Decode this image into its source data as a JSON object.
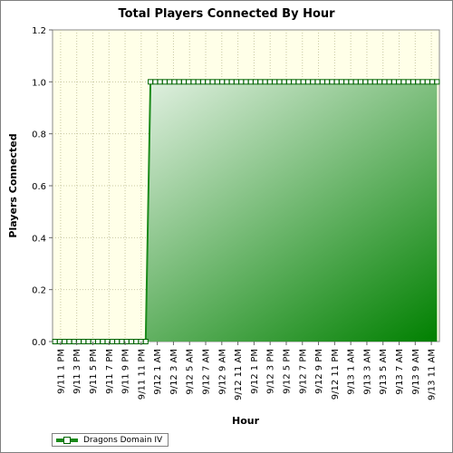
{
  "chart_data": {
    "type": "area",
    "title": "Total Players Connected By Hour",
    "xlabel": "Hour",
    "ylabel": "Players Connected",
    "ylim": [
      0,
      1.2
    ],
    "yticks": [
      "0.0",
      "0.2",
      "0.4",
      "0.6",
      "0.8",
      "1.0",
      "1.2"
    ],
    "xtick_labels": [
      "9/11 1 PM",
      "9/11 3 PM",
      "9/11 5 PM",
      "9/11 7 PM",
      "9/11 9 PM",
      "9/11 11 PM",
      "9/12 1 AM",
      "9/12 3 AM",
      "9/12 5 AM",
      "9/12 7 AM",
      "9/12 9 AM",
      "9/12 11 AM",
      "9/12 1 PM",
      "9/12 3 PM",
      "9/12 5 PM",
      "9/12 7 PM",
      "9/12 9 PM",
      "9/12 11 PM",
      "9/13 1 AM",
      "9/13 3 AM",
      "9/13 5 AM",
      "9/13 7 AM",
      "9/13 9 AM",
      "9/13 11 AM"
    ],
    "grid": true,
    "legend_position": "bottom-left",
    "series": [
      {
        "name": "Dragons Domain IV",
        "color": "#1a8a1a",
        "values": [
          0,
          0,
          0,
          0,
          0,
          0,
          0,
          0,
          0,
          0,
          0,
          0,
          0,
          0,
          0,
          0,
          0,
          0,
          0,
          0,
          1,
          1,
          1,
          1,
          1,
          1,
          1,
          1,
          1,
          1,
          1,
          1,
          1,
          1,
          1,
          1,
          1,
          1,
          1,
          1,
          1,
          1,
          1,
          1,
          1,
          1,
          1,
          1,
          1,
          1,
          1,
          1,
          1,
          1,
          1,
          1,
          1,
          1,
          1,
          1,
          1,
          1,
          1,
          1,
          1,
          1,
          1,
          1,
          1,
          1,
          1,
          1,
          1,
          1,
          1,
          1,
          1,
          1,
          1,
          1,
          1
        ]
      }
    ]
  }
}
